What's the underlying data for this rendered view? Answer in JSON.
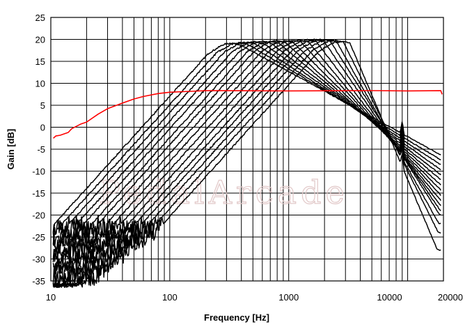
{
  "watermark_text": "PedalArcade",
  "chart_data": {
    "type": "line",
    "title": "",
    "xlabel": "Frequency [Hz]",
    "ylabel": "Gain [dB]",
    "xscale": "log",
    "xlim": [
      10,
      20000
    ],
    "ylim": [
      -35,
      25
    ],
    "x_ticks": [
      {
        "value": 10,
        "label": "10"
      },
      {
        "value": 100,
        "label": "100"
      },
      {
        "value": 1000,
        "label": "1000"
      },
      {
        "value": 10000,
        "label": "10000"
      },
      {
        "value": 20000,
        "label": "20000"
      }
    ],
    "y_ticks": [
      25,
      20,
      15,
      10,
      5,
      0,
      -5,
      -10,
      -15,
      -20,
      -25,
      -30,
      -35
    ],
    "grid": true,
    "legend": "none",
    "colors": {
      "bandpass": "#000000",
      "reference": "#ff0000",
      "grid": "#000000"
    },
    "reference_series": {
      "color": "#ff0000",
      "points": [
        [
          10.5,
          -2.5
        ],
        [
          11,
          -2
        ],
        [
          12,
          -1.8
        ],
        [
          14,
          -1.2
        ],
        [
          15,
          -0.3
        ],
        [
          18,
          0.8
        ],
        [
          20,
          1.2
        ],
        [
          25,
          3
        ],
        [
          30,
          4.2
        ],
        [
          40,
          5.5
        ],
        [
          50,
          6.5
        ],
        [
          60,
          7
        ],
        [
          80,
          7.6
        ],
        [
          100,
          7.9
        ],
        [
          150,
          8.2
        ],
        [
          200,
          8.3
        ],
        [
          300,
          8.3
        ],
        [
          1000,
          8.3
        ],
        [
          5000,
          8.3
        ],
        [
          10000,
          8.3
        ],
        [
          19000,
          8.3
        ],
        [
          19500,
          7.5
        ]
      ]
    },
    "bandpass_series": {
      "color": "#000000",
      "center_frequencies": [
        330,
        385,
        445,
        520,
        600,
        700,
        800,
        930,
        1080,
        1250,
        1450,
        1680,
        1900,
        2150,
        2450,
        2780
      ],
      "peak_gain_db": [
        19.2,
        19.3,
        19.4,
        19.5,
        19.6,
        19.6,
        19.7,
        19.7,
        19.8,
        19.8,
        19.9,
        20.0,
        20.0,
        19.9,
        19.8,
        19.6
      ],
      "high_end_gain_db_at_19k": [
        -8,
        -9,
        -10,
        -11,
        -12,
        -13,
        -14,
        -15,
        -16,
        -17,
        -18,
        -19,
        -20,
        -22,
        -24,
        -28
      ],
      "resonance_spike_hz": 9000
    }
  }
}
